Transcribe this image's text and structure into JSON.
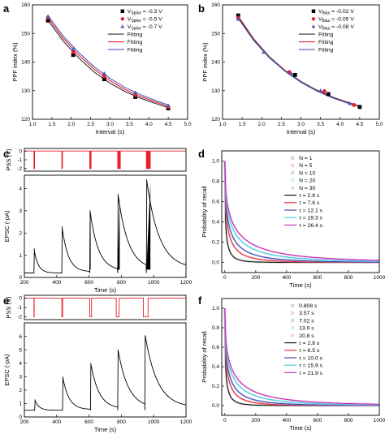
{
  "figure": {
    "panels": [
      {
        "letter": "a"
      },
      {
        "letter": "b"
      },
      {
        "letter": "c"
      },
      {
        "letter": "d"
      },
      {
        "letter": "e"
      },
      {
        "letter": "f"
      }
    ]
  },
  "chart_data": [
    {
      "type": "scatter",
      "panel": "a",
      "xlabel": "Interval (s)",
      "ylabel": "PPF index (%)",
      "xlim": [
        1.0,
        5.0
      ],
      "ylim": [
        120,
        160
      ],
      "xticks": [
        "1.0",
        "1.5",
        "2.0",
        "2.5",
        "3.0",
        "3.5",
        "4.0",
        "4.5",
        "5.0"
      ],
      "yticks": [
        "120",
        "130",
        "140",
        "150",
        "160"
      ],
      "legend_position": "top-right",
      "series": [
        {
          "name": "V_Spike = -0.3 V",
          "label_main": "V",
          "label_sub": "Spike",
          "label_rest": " = -0.3 V",
          "marker": "square",
          "color": "#000000",
          "x": [
            1.4,
            2.05,
            2.85,
            3.65,
            4.5
          ],
          "y": [
            154.5,
            142.5,
            134.0,
            127.8,
            123.8
          ]
        },
        {
          "name": "V_Spike = -0.5 V",
          "label_main": "V",
          "label_sub": "Spike",
          "label_rest": " = -0.5 V",
          "marker": "circle",
          "color": "#e8202a",
          "x": [
            1.4,
            2.05,
            2.85,
            3.65,
            4.5
          ],
          "y": [
            155.5,
            143.5,
            135.0,
            128.5,
            124.3
          ]
        },
        {
          "name": "V_Spike = -0.7 V",
          "label_main": "V",
          "label_sub": "Spike",
          "label_rest": " = -0.7 V",
          "marker": "triangle",
          "color": "#4a58b8",
          "x": [
            1.4,
            2.05,
            2.85,
            3.65,
            4.5
          ],
          "y": [
            156.0,
            144.5,
            136.0,
            129.3,
            124.8
          ]
        }
      ],
      "fits": [
        {
          "name": "Fitting",
          "color": "#333333",
          "x": [
            1.4,
            1.8,
            2.2,
            2.6,
            3.0,
            3.4,
            3.8,
            4.2,
            4.5
          ],
          "y": [
            154.6,
            147.2,
            141.3,
            136.4,
            132.6,
            129.6,
            127.3,
            125.4,
            124.0
          ]
        },
        {
          "name": "Fitting",
          "color": "#e8202a",
          "x": [
            1.4,
            1.8,
            2.2,
            2.6,
            3.0,
            3.4,
            3.8,
            4.2,
            4.5
          ],
          "y": [
            155.5,
            148.2,
            142.3,
            137.4,
            133.5,
            130.3,
            127.9,
            125.9,
            124.5
          ]
        },
        {
          "name": "Fitting",
          "color": "#4a58b8",
          "x": [
            1.4,
            1.8,
            2.2,
            2.6,
            3.0,
            3.4,
            3.8,
            4.2,
            4.5
          ],
          "y": [
            156.2,
            149.0,
            143.2,
            138.2,
            134.3,
            131.0,
            128.5,
            126.4,
            125.0
          ]
        }
      ]
    },
    {
      "type": "scatter",
      "panel": "b",
      "xlabel": "Interval (s)",
      "ylabel": "PPF index (%)",
      "xlim": [
        1.0,
        5.0
      ],
      "ylim": [
        120,
        160
      ],
      "xticks": [
        "1.0",
        "1.5",
        "2.0",
        "2.5",
        "3.0",
        "3.5",
        "4.0",
        "4.5",
        "5.0"
      ],
      "yticks": [
        "120",
        "130",
        "140",
        "150",
        "160"
      ],
      "legend_position": "top-right",
      "series": [
        {
          "name": "V_Bias = -0.02 V",
          "label_main": "V",
          "label_sub": "Bias",
          "label_rest": " = -0.02 V",
          "marker": "square",
          "color": "#000000",
          "x": [
            1.4,
            2.85,
            3.7,
            4.5
          ],
          "y": [
            156.3,
            135.5,
            128.8,
            124.3
          ]
        },
        {
          "name": "V_Bias = -0.05 V",
          "label_main": "V",
          "label_sub": "Bias",
          "label_rest": " = -0.05 V",
          "marker": "circle",
          "color": "#e8202a",
          "x": [
            1.4,
            2.7,
            3.6,
            4.35
          ],
          "y": [
            155.5,
            136.5,
            129.8,
            125.0
          ]
        },
        {
          "name": "V_Bias = -0.08 V",
          "label_main": "V",
          "label_sub": "Bias",
          "label_rest": " = -0.08 V",
          "marker": "triangle",
          "color": "#4a58b8",
          "x": [
            1.4,
            2.05,
            2.75,
            3.5,
            4.25
          ],
          "y": [
            155.0,
            143.5,
            136.0,
            130.0,
            125.5
          ]
        }
      ],
      "fits": [
        {
          "name": "Fitting",
          "color": "#333333",
          "x": [
            1.4,
            1.8,
            2.2,
            2.6,
            3.0,
            3.4,
            3.8,
            4.2,
            4.5
          ],
          "y": [
            156.0,
            148.0,
            141.8,
            137.0,
            133.2,
            130.2,
            127.8,
            125.9,
            124.6
          ]
        },
        {
          "name": "Fitting",
          "color": "#e8202a",
          "x": [
            1.4,
            1.8,
            2.2,
            2.6,
            3.0,
            3.4,
            3.8,
            4.2,
            4.5
          ],
          "y": [
            155.6,
            147.7,
            141.6,
            136.8,
            133.0,
            130.0,
            127.6,
            125.7,
            124.5
          ]
        },
        {
          "name": "Fitting",
          "color": "#4a58b8",
          "x": [
            1.4,
            1.8,
            2.2,
            2.6,
            3.0,
            3.4,
            3.8,
            4.2,
            4.5
          ],
          "y": [
            155.2,
            147.4,
            141.4,
            136.7,
            132.9,
            129.9,
            127.5,
            125.6,
            124.4
          ]
        }
      ]
    },
    {
      "type": "line",
      "panel": "c",
      "top": {
        "ylabel": "PSS (V)",
        "yticks": [
          "0",
          "-1",
          "-2"
        ],
        "ylim": [
          -2.3,
          0.3
        ],
        "color": "#e8202a",
        "pulse_groups": [
          {
            "t": 265,
            "count": 1
          },
          {
            "t": 455,
            "count": 5
          },
          {
            "t": 645,
            "count": 10
          },
          {
            "t": 835,
            "count": 20
          },
          {
            "t": 1030,
            "count": 30
          }
        ]
      },
      "bottom": {
        "ylabel": "EPSC (-pA)",
        "xlabel": "Time (s)",
        "xlim": [
          200,
          1300
        ],
        "ylim": [
          0,
          4.6
        ],
        "xticks": [
          "200",
          "400",
          "600",
          "800",
          "1000",
          "1200"
        ],
        "yticks": [
          "0",
          "1",
          "2",
          "3",
          "4"
        ],
        "color": "#000000",
        "baseline": 0.2,
        "spikes": [
          {
            "t": 265,
            "peak": 1.3,
            "width": 0
          },
          {
            "t": 455,
            "peak": 2.3,
            "width": 2
          },
          {
            "t": 645,
            "peak": 3.0,
            "width": 6
          },
          {
            "t": 835,
            "peak": 3.7,
            "width": 14
          },
          {
            "t": 1030,
            "peak": 4.3,
            "width": 28
          }
        ]
      }
    },
    {
      "type": "line",
      "panel": "d",
      "xlabel": "Time (s)",
      "ylabel": "Probability of recall",
      "xlim": [
        -20,
        1000
      ],
      "ylim": [
        -0.1,
        1.1
      ],
      "xticks": [
        "0",
        "200",
        "400",
        "600",
        "800",
        "1000"
      ],
      "yticks": [
        "0.0",
        "0.2",
        "0.4",
        "0.6",
        "0.8",
        "1.0"
      ],
      "legend_position": "top-right",
      "data_series": [
        {
          "name": "N = 1",
          "color": "#8c8c8c"
        },
        {
          "name": "N = 5",
          "color": "#ef8080"
        },
        {
          "name": "N = 10",
          "color": "#8890d8"
        },
        {
          "name": "N = 20",
          "color": "#7fd6e6"
        },
        {
          "name": "N = 30",
          "color": "#e080d8"
        }
      ],
      "fit_series": [
        {
          "name": "τ = 2.8 s",
          "tau": 2.8,
          "color": "#000000"
        },
        {
          "name": "τ = 7.6 s",
          "tau": 7.6,
          "color": "#e8202a"
        },
        {
          "name": "τ = 12.1 s",
          "tau": 12.1,
          "color": "#3040b0"
        },
        {
          "name": "τ = 19.3 s",
          "tau": 19.3,
          "color": "#40c8e0"
        },
        {
          "name": "τ = 26.4 s",
          "tau": 26.4,
          "color": "#c020a8"
        }
      ]
    },
    {
      "type": "line",
      "panel": "e",
      "top": {
        "ylabel": "PSS (V)",
        "yticks": [
          "0",
          "-1",
          "-2"
        ],
        "ylim": [
          -2.3,
          0.3
        ],
        "color": "#e8202a",
        "pulses": [
          {
            "t": 265,
            "width": 2
          },
          {
            "t": 455,
            "width": 6
          },
          {
            "t": 645,
            "width": 12
          },
          {
            "t": 825,
            "width": 20
          },
          {
            "t": 1010,
            "width": 32
          }
        ]
      },
      "bottom": {
        "ylabel": "EPSC (-pA)",
        "xlabel": "Time (s)",
        "xlim": [
          200,
          1300
        ],
        "ylim": [
          0,
          7
        ],
        "xticks": [
          "200",
          "400",
          "600",
          "800",
          "1000",
          "1200"
        ],
        "yticks": [
          "0",
          "1",
          "2",
          "3",
          "4",
          "5",
          "6"
        ],
        "color": "#000000",
        "baseline": 0.5,
        "spikes": [
          {
            "t": 270,
            "peak": 1.3
          },
          {
            "t": 460,
            "peak": 3.0
          },
          {
            "t": 650,
            "peak": 4.0
          },
          {
            "t": 835,
            "peak": 5.0
          },
          {
            "t": 1020,
            "peak": 6.0
          }
        ]
      }
    },
    {
      "type": "line",
      "panel": "f",
      "xlabel": "Time (s)",
      "ylabel": "Probability of recall",
      "xlim": [
        -20,
        1000
      ],
      "ylim": [
        -0.1,
        1.1
      ],
      "xticks": [
        "0",
        "200",
        "400",
        "600",
        "800",
        "1000"
      ],
      "yticks": [
        "0.0",
        "0.2",
        "0.4",
        "0.6",
        "0.8",
        "1.0"
      ],
      "legend_position": "top-right",
      "data_series": [
        {
          "name": "0.808 s",
          "color": "#8c8c8c"
        },
        {
          "name": "3.57 s",
          "color": "#ef8080"
        },
        {
          "name": "7.02 s",
          "color": "#8890d8"
        },
        {
          "name": "13.9 s",
          "color": "#7fd6e6"
        },
        {
          "name": "20.8 s",
          "color": "#e080d8"
        }
      ],
      "fit_series": [
        {
          "name": "τ = 2.8 s",
          "tau": 2.8,
          "color": "#000000"
        },
        {
          "name": "τ = 6.5 s",
          "tau": 6.5,
          "color": "#e8202a"
        },
        {
          "name": "τ = 10.0 s",
          "tau": 10.0,
          "color": "#3040b0"
        },
        {
          "name": "τ = 15.9 s",
          "tau": 15.9,
          "color": "#40c8e0"
        },
        {
          "name": "τ = 21.9 s",
          "tau": 21.9,
          "color": "#c020a8"
        }
      ]
    }
  ]
}
